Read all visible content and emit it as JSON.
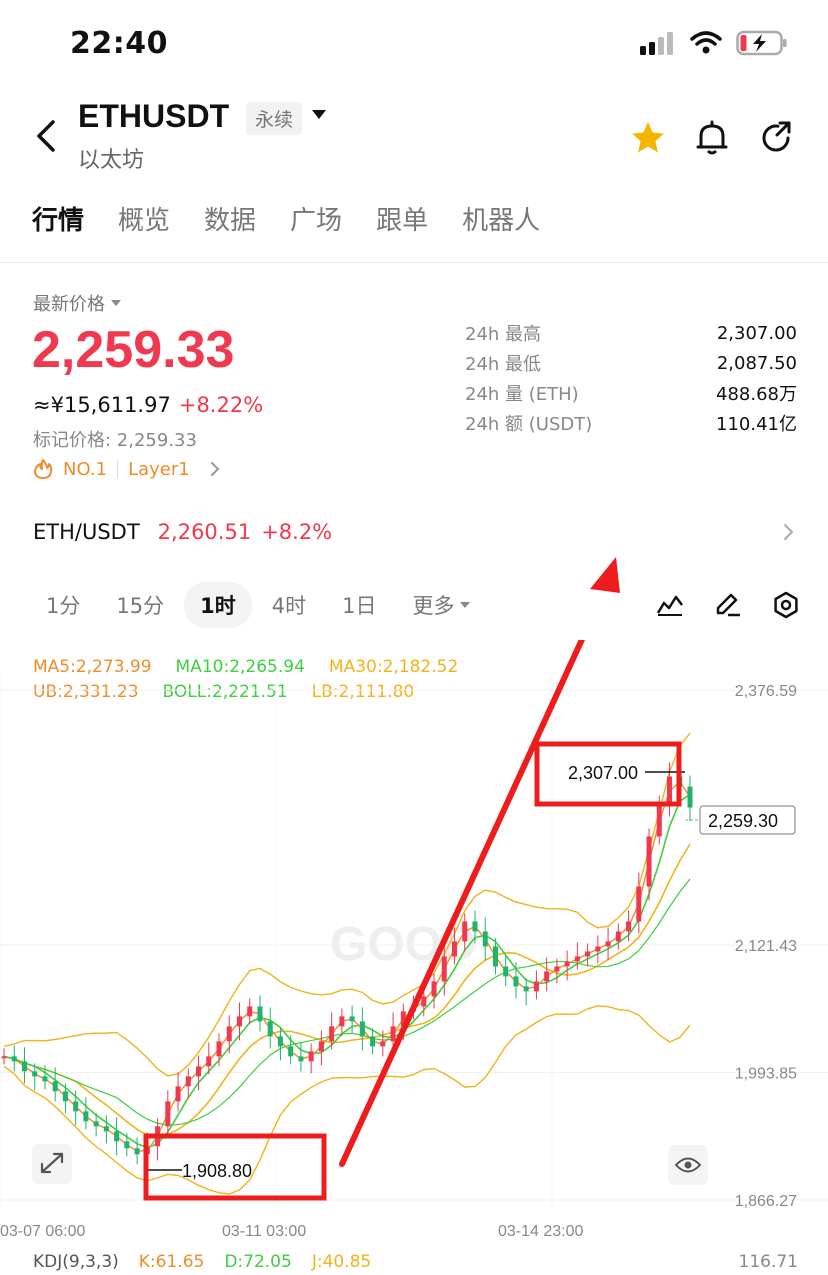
{
  "status_bar": {
    "time": "22:40"
  },
  "header": {
    "symbol": "ETHUSDT",
    "contract_tag": "永续",
    "coin_name": "以太坊",
    "colors": {
      "star": "#f4b400"
    }
  },
  "tabs": [
    "行情",
    "概览",
    "数据",
    "广场",
    "跟单",
    "机器人"
  ],
  "price": {
    "label": "最新价格",
    "last": "2,259.33",
    "cny": "≈¥15,611.97",
    "change": "+8.22%",
    "mark_price": "标记价格: 2,259.33",
    "rank_tag": "NO.1",
    "category_tag": "Layer1",
    "color_up": "#f0384e"
  },
  "stats": [
    {
      "label": "24h  最高",
      "value": "2,307.00"
    },
    {
      "label": "24h  最低",
      "value": "2,087.50"
    },
    {
      "label": "24h  量 (ETH)",
      "value": "488.68万"
    },
    {
      "label": "24h  额 (USDT)",
      "value": "110.41亿"
    }
  ],
  "pair": {
    "name": "ETH/USDT",
    "price": "2,260.51",
    "change": "+8.2%"
  },
  "intervals": {
    "items": [
      "1分",
      "15分",
      "1时",
      "4时",
      "1日"
    ],
    "active": "1时",
    "more": "更多"
  },
  "indicators": {
    "ma5": "MA5:2,273.99",
    "ma10": "MA10:2,265.94",
    "ma30": "MA30:2,182.52",
    "ub": "UB:2,331.23",
    "boll": "BOLL:2,221.51",
    "lb": "LB:2,111.80"
  },
  "chart_data": {
    "type": "line",
    "y_axis_ticks": [
      "2,376.59",
      "2,121.43",
      "1,993.85",
      "1,866.27"
    ],
    "x_axis_ticks": [
      "03-07 06:00",
      "03-11 03:00",
      "03-14 23:00"
    ],
    "high_marker": "2,307.00",
    "low_marker": "1,908.80",
    "current_price_tag": "2,259.30",
    "watermark": "GOOD",
    "ylim": [
      1866.27,
      2376.59
    ],
    "close_series": [
      2010,
      2005,
      1995,
      1990,
      1985,
      1975,
      1965,
      1955,
      1945,
      1940,
      1935,
      1925,
      1918,
      1912,
      1920,
      1940,
      1965,
      1980,
      1990,
      2000,
      2010,
      2025,
      2040,
      2050,
      2060,
      2045,
      2030,
      2020,
      2010,
      2005,
      2015,
      2025,
      2040,
      2050,
      2045,
      2030,
      2020,
      2025,
      2040,
      2055,
      2060,
      2070,
      2085,
      2110,
      2125,
      2145,
      2135,
      2120,
      2100,
      2090,
      2080,
      2075,
      2085,
      2095,
      2100,
      2105,
      2110,
      2115,
      2120,
      2125,
      2135,
      2145,
      2180,
      2230,
      2260,
      2290,
      2280,
      2259
    ]
  },
  "kdj": {
    "label": "KDJ(9,3,3)",
    "k": "K:61.65",
    "d": "D:72.05",
    "j": "J:40.85",
    "axis_value": "116.71"
  }
}
